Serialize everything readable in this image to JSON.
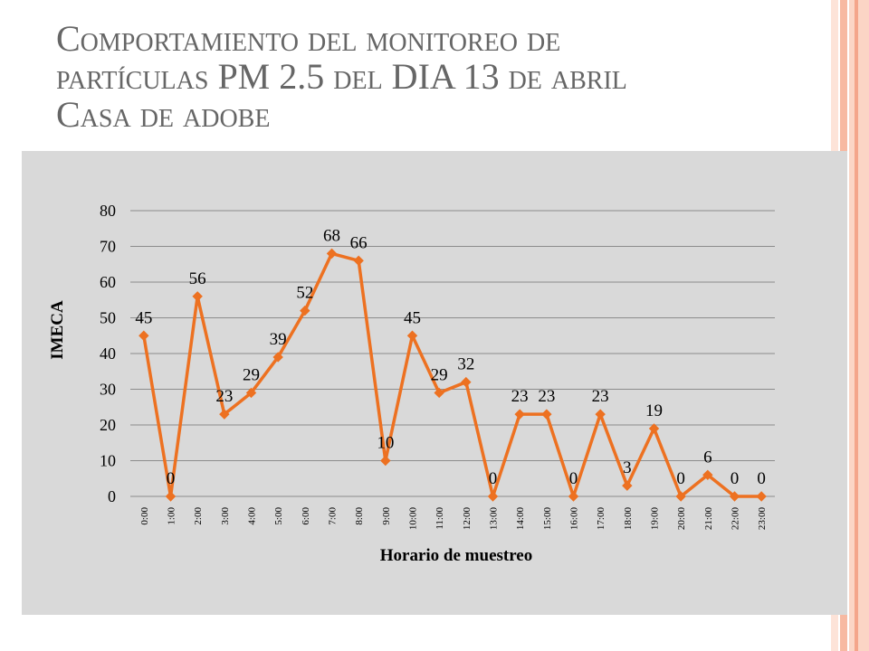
{
  "slide": {
    "title_lines": [
      "Comportamiento del monitoreo de",
      "partículas PM 2.5 del DIA 13 de abril",
      "Casa de adobe"
    ]
  },
  "colors": {
    "line": "#ed7121",
    "panel_bg": "#d9d9d9",
    "grid": "#8c8c8c",
    "title": "#666666",
    "stripe_light": "#fbd5c5",
    "stripe_dark": "#f4a58a"
  },
  "chart_data": {
    "type": "line",
    "title": "",
    "xlabel": "Horario de muestreo",
    "ylabel": "IMECA",
    "categories": [
      "0:00",
      "1:00",
      "2:00",
      "3:00",
      "4:00",
      "5:00",
      "6:00",
      "7:00",
      "8:00",
      "9:00",
      "10:00",
      "11:00",
      "12:00",
      "13:00",
      "14:00",
      "15:00",
      "16:00",
      "17:00",
      "18:00",
      "19:00",
      "20:00",
      "21:00",
      "22:00",
      "23:00"
    ],
    "series": [
      {
        "values": [
          45,
          0,
          56,
          23,
          29,
          39,
          52,
          68,
          66,
          10,
          45,
          29,
          32,
          0,
          23,
          23,
          0,
          23,
          3,
          19,
          0,
          6,
          0,
          0
        ]
      }
    ],
    "data_labels_visible": [
      true,
      true,
      true,
      true,
      true,
      true,
      true,
      true,
      true,
      true,
      true,
      true,
      true,
      true,
      true,
      true,
      true,
      true,
      true,
      true,
      true,
      true,
      true,
      true
    ],
    "ylim": [
      0,
      80
    ],
    "yticks": [
      0,
      10,
      20,
      30,
      40,
      50,
      60,
      70,
      80
    ],
    "grid": true,
    "marker": "diamond",
    "legend": "none"
  }
}
